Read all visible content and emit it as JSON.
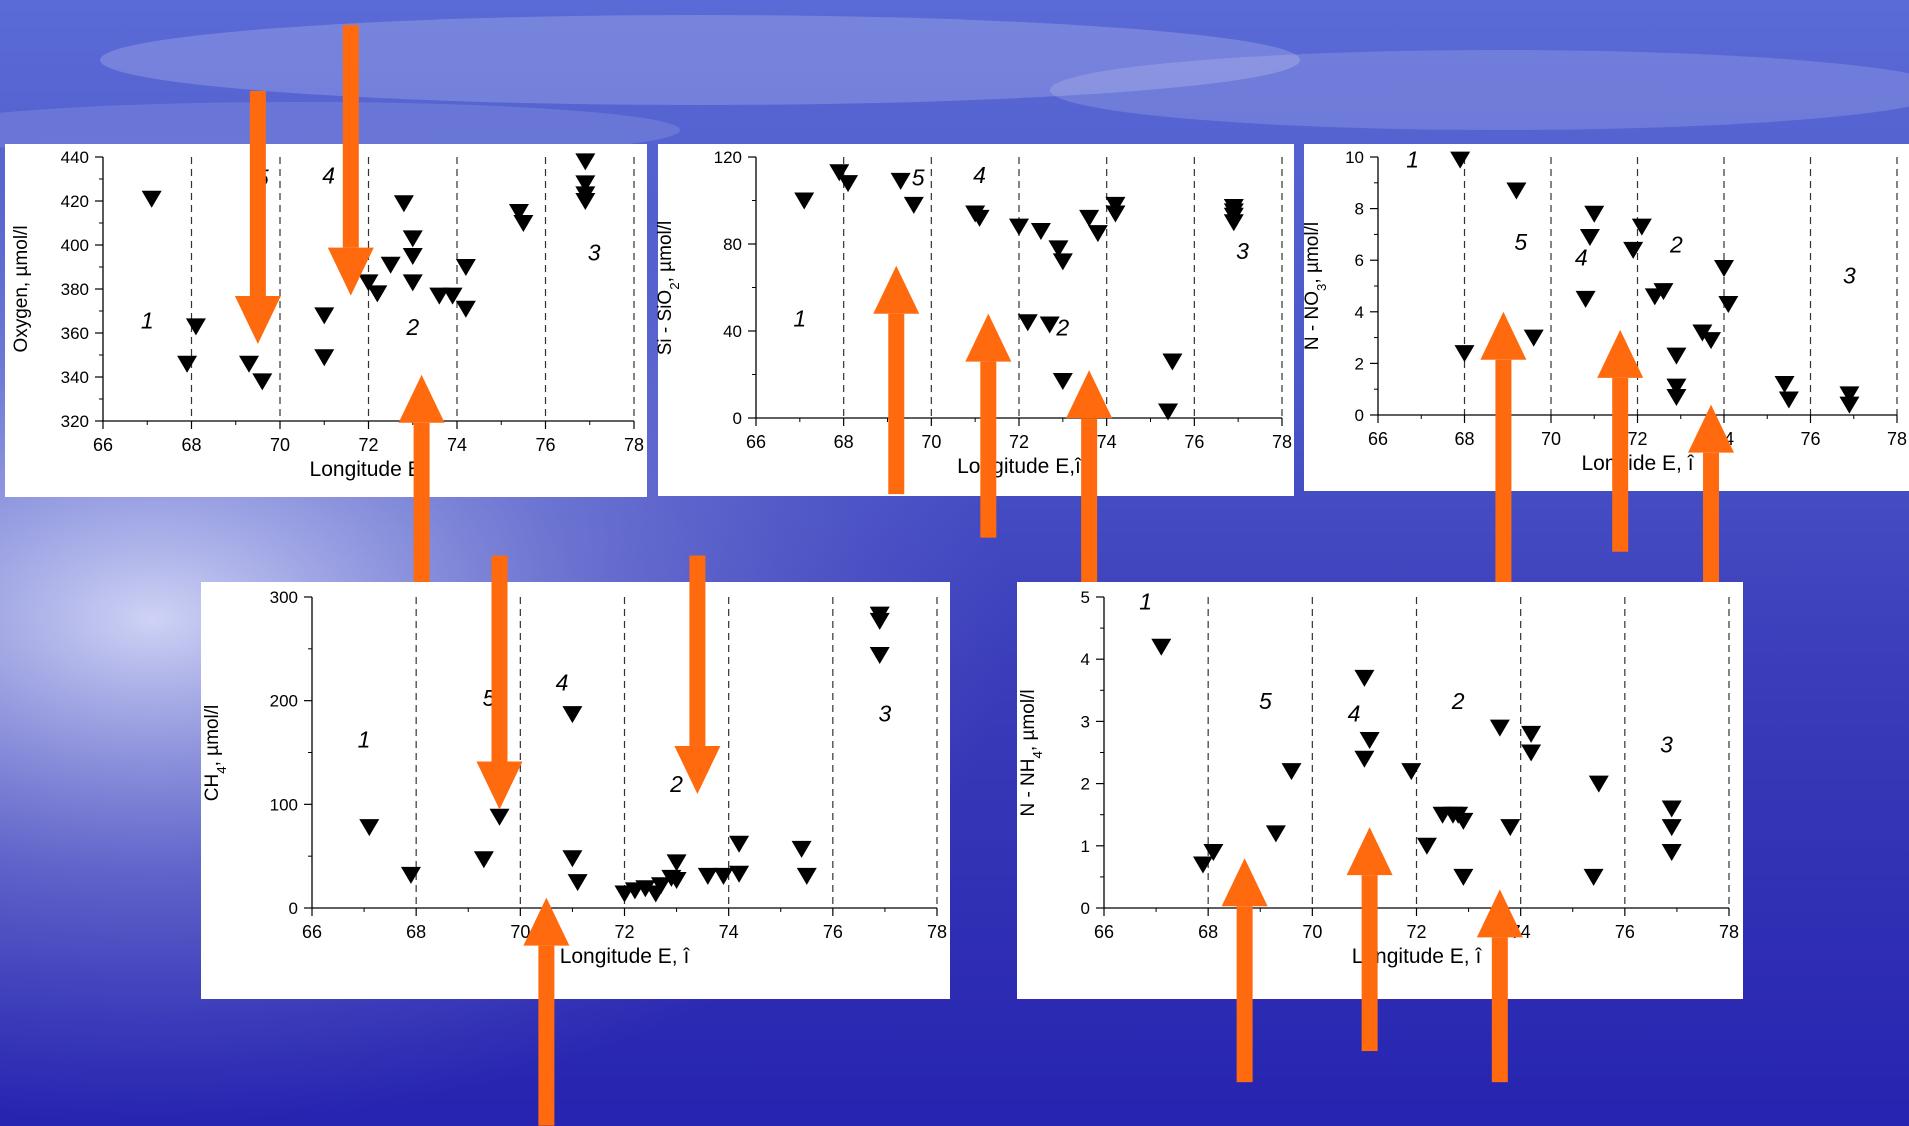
{
  "colors": {
    "arrow": "#ff6a0f",
    "marker": "#000000",
    "panel": "#ffffff",
    "background_top": "#5a6ad6",
    "background_bottom": "#2624b0"
  },
  "chart_data": [
    {
      "type": "scatter",
      "id": "oxygen",
      "ylabel": "Oxygen,  µmol/l",
      "xlabel": "Longitude E,",
      "xlim": [
        66,
        78
      ],
      "xticks": [
        66,
        68,
        70,
        72,
        74,
        76,
        78
      ],
      "ylim": [
        320,
        440
      ],
      "yticks": [
        320,
        340,
        360,
        380,
        400,
        420,
        440
      ],
      "zone_lines": [
        68,
        70,
        72,
        74,
        76,
        78
      ],
      "zone_labels": [
        {
          "text": "1",
          "x": 67,
          "y": 362
        },
        {
          "text": "5",
          "x": 69.6,
          "y": 427
        },
        {
          "text": "4",
          "x": 71.1,
          "y": 428
        },
        {
          "text": "2",
          "x": 73,
          "y": 359
        },
        {
          "text": "3",
          "x": 77.1,
          "y": 393
        }
      ],
      "points": [
        [
          67.1,
          421
        ],
        [
          67.9,
          346
        ],
        [
          68.1,
          363
        ],
        [
          69.3,
          346
        ],
        [
          69.6,
          338
        ],
        [
          71,
          368
        ],
        [
          71,
          349
        ],
        [
          72,
          383
        ],
        [
          72.2,
          378
        ],
        [
          72.5,
          391
        ],
        [
          72.8,
          419
        ],
        [
          73,
          403
        ],
        [
          73,
          395
        ],
        [
          73,
          383
        ],
        [
          73.6,
          377
        ],
        [
          73.9,
          377
        ],
        [
          74.2,
          390
        ],
        [
          74.2,
          371
        ],
        [
          75.4,
          415
        ],
        [
          75.5,
          410
        ],
        [
          76.9,
          438
        ],
        [
          76.9,
          428
        ],
        [
          76.9,
          423
        ],
        [
          76.9,
          420
        ]
      ],
      "arrows": [
        {
          "x": 69.5,
          "y_from": 470,
          "y_to": 355
        },
        {
          "x": 71.6,
          "y_from": 500,
          "y_to": 377
        },
        {
          "x": 73.2,
          "y_from": 240,
          "y_to": 341
        }
      ]
    },
    {
      "type": "scatter",
      "id": "silica",
      "ylabel": "Si - SiO2, µmol/l",
      "xlabel": "Longitude E,î",
      "xlim": [
        66,
        78
      ],
      "xticks": [
        66,
        68,
        70,
        72,
        74,
        76,
        78
      ],
      "ylim": [
        0,
        120
      ],
      "yticks": [
        0,
        40,
        80,
        120
      ],
      "zone_lines": [
        68,
        70,
        72,
        74,
        76,
        78
      ],
      "zone_labels": [
        {
          "text": "1",
          "x": 67,
          "y": 42
        },
        {
          "text": "5",
          "x": 69.7,
          "y": 107
        },
        {
          "text": "4",
          "x": 71.1,
          "y": 108
        },
        {
          "text": "2",
          "x": 73,
          "y": 38
        },
        {
          "text": "3",
          "x": 77.1,
          "y": 73
        }
      ],
      "points": [
        [
          67.1,
          100
        ],
        [
          67.9,
          113
        ],
        [
          68.1,
          108
        ],
        [
          69.3,
          109
        ],
        [
          69.6,
          98
        ],
        [
          71,
          94
        ],
        [
          71.1,
          92
        ],
        [
          72,
          88
        ],
        [
          72.2,
          44
        ],
        [
          72.5,
          86
        ],
        [
          72.7,
          43
        ],
        [
          72.9,
          78
        ],
        [
          73,
          72
        ],
        [
          73,
          17
        ],
        [
          73.6,
          92
        ],
        [
          73.8,
          85
        ],
        [
          74.2,
          98
        ],
        [
          74.2,
          94
        ],
        [
          75.4,
          3
        ],
        [
          75.5,
          26
        ],
        [
          76.9,
          97
        ],
        [
          76.9,
          95
        ],
        [
          76.9,
          93
        ],
        [
          76.9,
          90
        ]
      ],
      "arrows": [
        {
          "x": 69.2,
          "y_from": -35,
          "y_to": 70
        },
        {
          "x": 71.3,
          "y_from": -55,
          "y_to": 48
        },
        {
          "x": 73.6,
          "y_from": -85,
          "y_to": 22
        }
      ]
    },
    {
      "type": "scatter",
      "id": "nitrate",
      "ylabel": "N - NO3, µmol/l",
      "xlabel": "Longide E, î",
      "xlim": [
        66,
        78
      ],
      "xticks": [
        66,
        68,
        70,
        72,
        74,
        76,
        78
      ],
      "ylim": [
        0,
        10
      ],
      "yticks": [
        0,
        2,
        4,
        6,
        8,
        10
      ],
      "zone_lines": [
        68,
        70,
        72,
        74,
        76,
        78
      ],
      "zone_labels": [
        {
          "text": "1",
          "x": 66.8,
          "y": 9.6
        },
        {
          "text": "5",
          "x": 69.3,
          "y": 6.4
        },
        {
          "text": "4",
          "x": 70.7,
          "y": 5.8
        },
        {
          "text": "2",
          "x": 72.9,
          "y": 6.3
        },
        {
          "text": "3",
          "x": 76.9,
          "y": 5.1
        }
      ],
      "points": [
        [
          67.9,
          9.9
        ],
        [
          68,
          2.4
        ],
        [
          69.2,
          8.7
        ],
        [
          69.6,
          3
        ],
        [
          70.8,
          4.5
        ],
        [
          70.9,
          6.9
        ],
        [
          71,
          7.8
        ],
        [
          71.9,
          6.4
        ],
        [
          72.1,
          7.3
        ],
        [
          72.4,
          4.6
        ],
        [
          72.6,
          4.8
        ],
        [
          72.9,
          2.3
        ],
        [
          72.9,
          1.1
        ],
        [
          72.9,
          0.7
        ],
        [
          73.5,
          3.2
        ],
        [
          73.7,
          2.9
        ],
        [
          74,
          5.7
        ],
        [
          74.1,
          4.3
        ],
        [
          75.4,
          1.2
        ],
        [
          75.5,
          0.6
        ],
        [
          76.9,
          0.8
        ],
        [
          76.9,
          0.4
        ]
      ],
      "arrows": [
        {
          "x": 68.9,
          "y_from": -6.6,
          "y_to": 4.0
        },
        {
          "x": 71.6,
          "y_from": -5.3,
          "y_to": 3.3
        },
        {
          "x": 73.7,
          "y_from": -8.1,
          "y_to": 0.4
        }
      ]
    },
    {
      "type": "scatter",
      "id": "methane",
      "ylabel": "CH4, µmol/l",
      "xlabel": "Longitude E, î",
      "xlim": [
        66,
        78
      ],
      "xticks": [
        66,
        68,
        70,
        72,
        74,
        76,
        78
      ],
      "ylim": [
        0,
        300
      ],
      "yticks": [
        0,
        100,
        200,
        300
      ],
      "zone_lines": [
        68,
        70,
        72,
        74,
        76,
        78
      ],
      "zone_labels": [
        {
          "text": "1",
          "x": 67,
          "y": 155
        },
        {
          "text": "5",
          "x": 69.4,
          "y": 195
        },
        {
          "text": "4",
          "x": 70.8,
          "y": 210
        },
        {
          "text": "2",
          "x": 73,
          "y": 112
        },
        {
          "text": "3",
          "x": 77,
          "y": 180
        }
      ],
      "points": [
        [
          67.1,
          78
        ],
        [
          67.9,
          32
        ],
        [
          69.3,
          47
        ],
        [
          69.6,
          88
        ],
        [
          71,
          187
        ],
        [
          71,
          48
        ],
        [
          71.1,
          25
        ],
        [
          72,
          14
        ],
        [
          72.2,
          17
        ],
        [
          72.4,
          19
        ],
        [
          72.6,
          14
        ],
        [
          72.7,
          22
        ],
        [
          72.9,
          29
        ],
        [
          73,
          44
        ],
        [
          73,
          27
        ],
        [
          73.6,
          31
        ],
        [
          73.9,
          31
        ],
        [
          74.2,
          33
        ],
        [
          74.2,
          62
        ],
        [
          75.4,
          57
        ],
        [
          75.5,
          31
        ],
        [
          76.9,
          283
        ],
        [
          76.9,
          277
        ],
        [
          76.9,
          244
        ]
      ],
      "arrows": [
        {
          "x": 69.6,
          "y_from": 340,
          "y_to": 95
        },
        {
          "x": 73.4,
          "y_from": 340,
          "y_to": 110
        },
        {
          "x": 70.5,
          "y_from": -210,
          "y_to": 10
        }
      ]
    },
    {
      "type": "scatter",
      "id": "ammonium",
      "ylabel": "N - NH4, µmol/l",
      "xlabel": "Longitude E, î",
      "xlim": [
        66,
        78
      ],
      "xticks": [
        66,
        68,
        70,
        72,
        74,
        76,
        78
      ],
      "ylim": [
        0,
        5
      ],
      "yticks": [
        0,
        1,
        2,
        3,
        4,
        5
      ],
      "zone_lines": [
        68,
        70,
        72,
        74,
        76,
        78
      ],
      "zone_labels": [
        {
          "text": "1",
          "x": 66.8,
          "y": 4.8
        },
        {
          "text": "5",
          "x": 69.1,
          "y": 3.2
        },
        {
          "text": "4",
          "x": 70.8,
          "y": 3.0
        },
        {
          "text": "2",
          "x": 72.8,
          "y": 3.2
        },
        {
          "text": "3",
          "x": 76.8,
          "y": 2.5
        }
      ],
      "points": [
        [
          67.1,
          4.2
        ],
        [
          67.9,
          0.7
        ],
        [
          68.1,
          0.9
        ],
        [
          69.3,
          1.2
        ],
        [
          69.6,
          2.2
        ],
        [
          71,
          3.7
        ],
        [
          71.1,
          2.7
        ],
        [
          71,
          2.4
        ],
        [
          71.9,
          2.2
        ],
        [
          72.2,
          1
        ],
        [
          72.5,
          1.5
        ],
        [
          72.7,
          1.5
        ],
        [
          72.8,
          1.5
        ],
        [
          72.9,
          1.4
        ],
        [
          72.9,
          0.5
        ],
        [
          73.6,
          2.9
        ],
        [
          73.8,
          1.3
        ],
        [
          74.2,
          2.8
        ],
        [
          74.2,
          2.5
        ],
        [
          75.4,
          0.5
        ],
        [
          75.5,
          2
        ],
        [
          76.9,
          1.6
        ],
        [
          76.9,
          1.3
        ],
        [
          76.9,
          0.9
        ]
      ],
      "arrows": [
        {
          "x": 68.7,
          "y_from": -2.8,
          "y_to": 0.8
        },
        {
          "x": 71.1,
          "y_from": -2.3,
          "y_to": 1.3
        },
        {
          "x": 73.6,
          "y_from": -2.8,
          "y_to": 0.3
        }
      ]
    }
  ]
}
